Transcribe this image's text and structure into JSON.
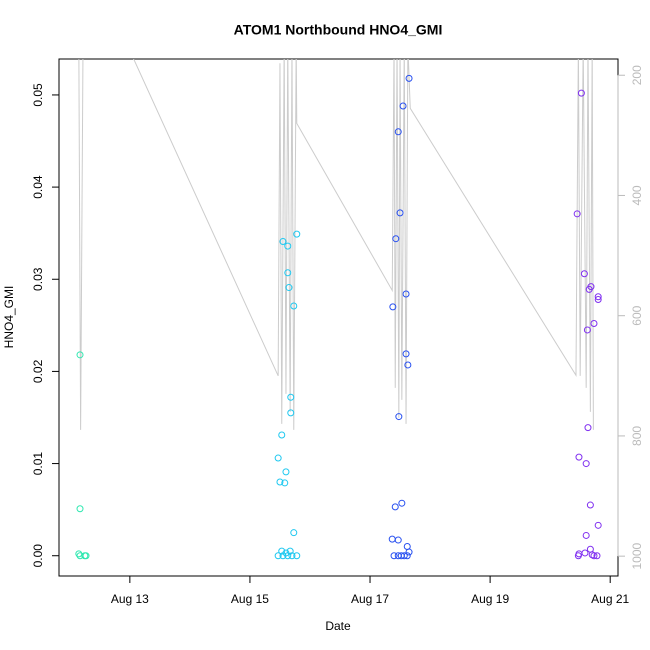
{
  "chart_data": {
    "type": "scatter",
    "title": "ATOM1 Northbound HNO4_GMI",
    "x_label": "Date",
    "y_label": "HNO4_GMI",
    "xlim": [
      11.82,
      21.13
    ],
    "xticks": [
      {
        "value": 13,
        "label": "Aug 13"
      },
      {
        "value": 15,
        "label": "Aug 15"
      },
      {
        "value": 17,
        "label": "Aug 17"
      },
      {
        "value": 19,
        "label": "Aug 19"
      },
      {
        "value": 21,
        "label": "Aug 21"
      }
    ],
    "ylim": [
      -0.0022,
      0.0539
    ],
    "yticks": [
      {
        "value": 0,
        "label": "0.00"
      },
      {
        "value": 0.01,
        "label": "0.01"
      },
      {
        "value": 0.02,
        "label": "0.02"
      },
      {
        "value": 0.03,
        "label": "0.03"
      },
      {
        "value": 0.04,
        "label": "0.04"
      },
      {
        "value": 0.05,
        "label": "0.05"
      }
    ],
    "y2lim": [
      1033,
      173
    ],
    "y2ticks": [
      200,
      400,
      600,
      800,
      1000
    ],
    "y2_color": "#bbbbbb",
    "series": [
      {
        "type": "line",
        "axis": "y2",
        "color": "#cccccc",
        "x": [
          12.15,
          12.18,
          12.22,
          13.05,
          15.47,
          15.5,
          15.53,
          15.57,
          15.6,
          15.63,
          15.67,
          15.7,
          15.73,
          15.77,
          15.78,
          17.37,
          17.4,
          17.42,
          17.45,
          17.48,
          17.5,
          17.53,
          17.57,
          17.6,
          17.63,
          17.67,
          20.43,
          20.47,
          20.5,
          20.55,
          20.6,
          20.63,
          20.67,
          20.7,
          20.72
        ],
        "values": [
          150,
          790,
          150,
          170,
          700,
          180,
          780,
          150,
          730,
          150,
          760,
          150,
          790,
          150,
          280,
          558,
          150,
          720,
          150,
          770,
          150,
          740,
          150,
          780,
          150,
          255,
          699,
          150,
          700,
          150,
          720,
          150,
          760,
          150,
          790
        ]
      },
      {
        "type": "scatter",
        "color": "#2ee8b0",
        "x": [
          12.17,
          12.17,
          12.15,
          12.17,
          12.25,
          12.27
        ],
        "values": [
          0.0218,
          0.0051,
          0.0002,
          0,
          0,
          0
        ]
      },
      {
        "type": "scatter",
        "color": "#1ec8f0",
        "x": [
          15.55,
          15.63,
          15.78,
          15.63,
          15.65,
          15.73,
          15.53,
          15.68,
          15.68,
          15.47,
          15.6,
          15.5,
          15.58,
          15.73,
          15.53,
          15.67,
          15.47,
          15.55,
          15.63,
          15.7,
          15.78,
          15.6
        ],
        "values": [
          0.0341,
          0.0336,
          0.0349,
          0.0307,
          0.0291,
          0.0271,
          0.0131,
          0.0172,
          0.0155,
          0.0106,
          0.0091,
          0.008,
          0.0079,
          0.0025,
          0.0005,
          0.0005,
          0,
          0,
          0,
          0,
          0,
          0.0003
        ]
      },
      {
        "type": "scatter",
        "color": "#2850f0",
        "x": [
          17.65,
          17.55,
          17.47,
          17.5,
          17.43,
          17.38,
          17.6,
          17.6,
          17.63,
          17.48,
          17.53,
          17.42,
          17.37,
          17.47,
          17.62,
          17.65,
          17.4,
          17.47,
          17.52,
          17.57,
          17.62
        ],
        "values": [
          0.0518,
          0.0488,
          0.046,
          0.0372,
          0.0344,
          0.027,
          0.0284,
          0.0219,
          0.0207,
          0.0151,
          0.0057,
          0.0053,
          0.0018,
          0.0017,
          0.001,
          0.0004,
          0,
          0,
          0,
          0,
          0
        ]
      },
      {
        "type": "scatter",
        "color": "#8030f0",
        "x": [
          20.52,
          20.45,
          20.57,
          20.65,
          20.68,
          20.8,
          20.8,
          20.73,
          20.62,
          20.63,
          20.48,
          20.6,
          20.67,
          20.8,
          20.6,
          20.67,
          20.48,
          20.47,
          20.58,
          20.7,
          20.78,
          20.73
        ],
        "values": [
          0.0502,
          0.0371,
          0.0306,
          0.0289,
          0.0292,
          0.0281,
          0.0278,
          0.0252,
          0.0245,
          0.0139,
          0.0107,
          0.01,
          0.0055,
          0.0033,
          0.0022,
          0.0007,
          0.0002,
          0,
          0.0003,
          0.0001,
          0,
          0
        ]
      }
    ]
  }
}
